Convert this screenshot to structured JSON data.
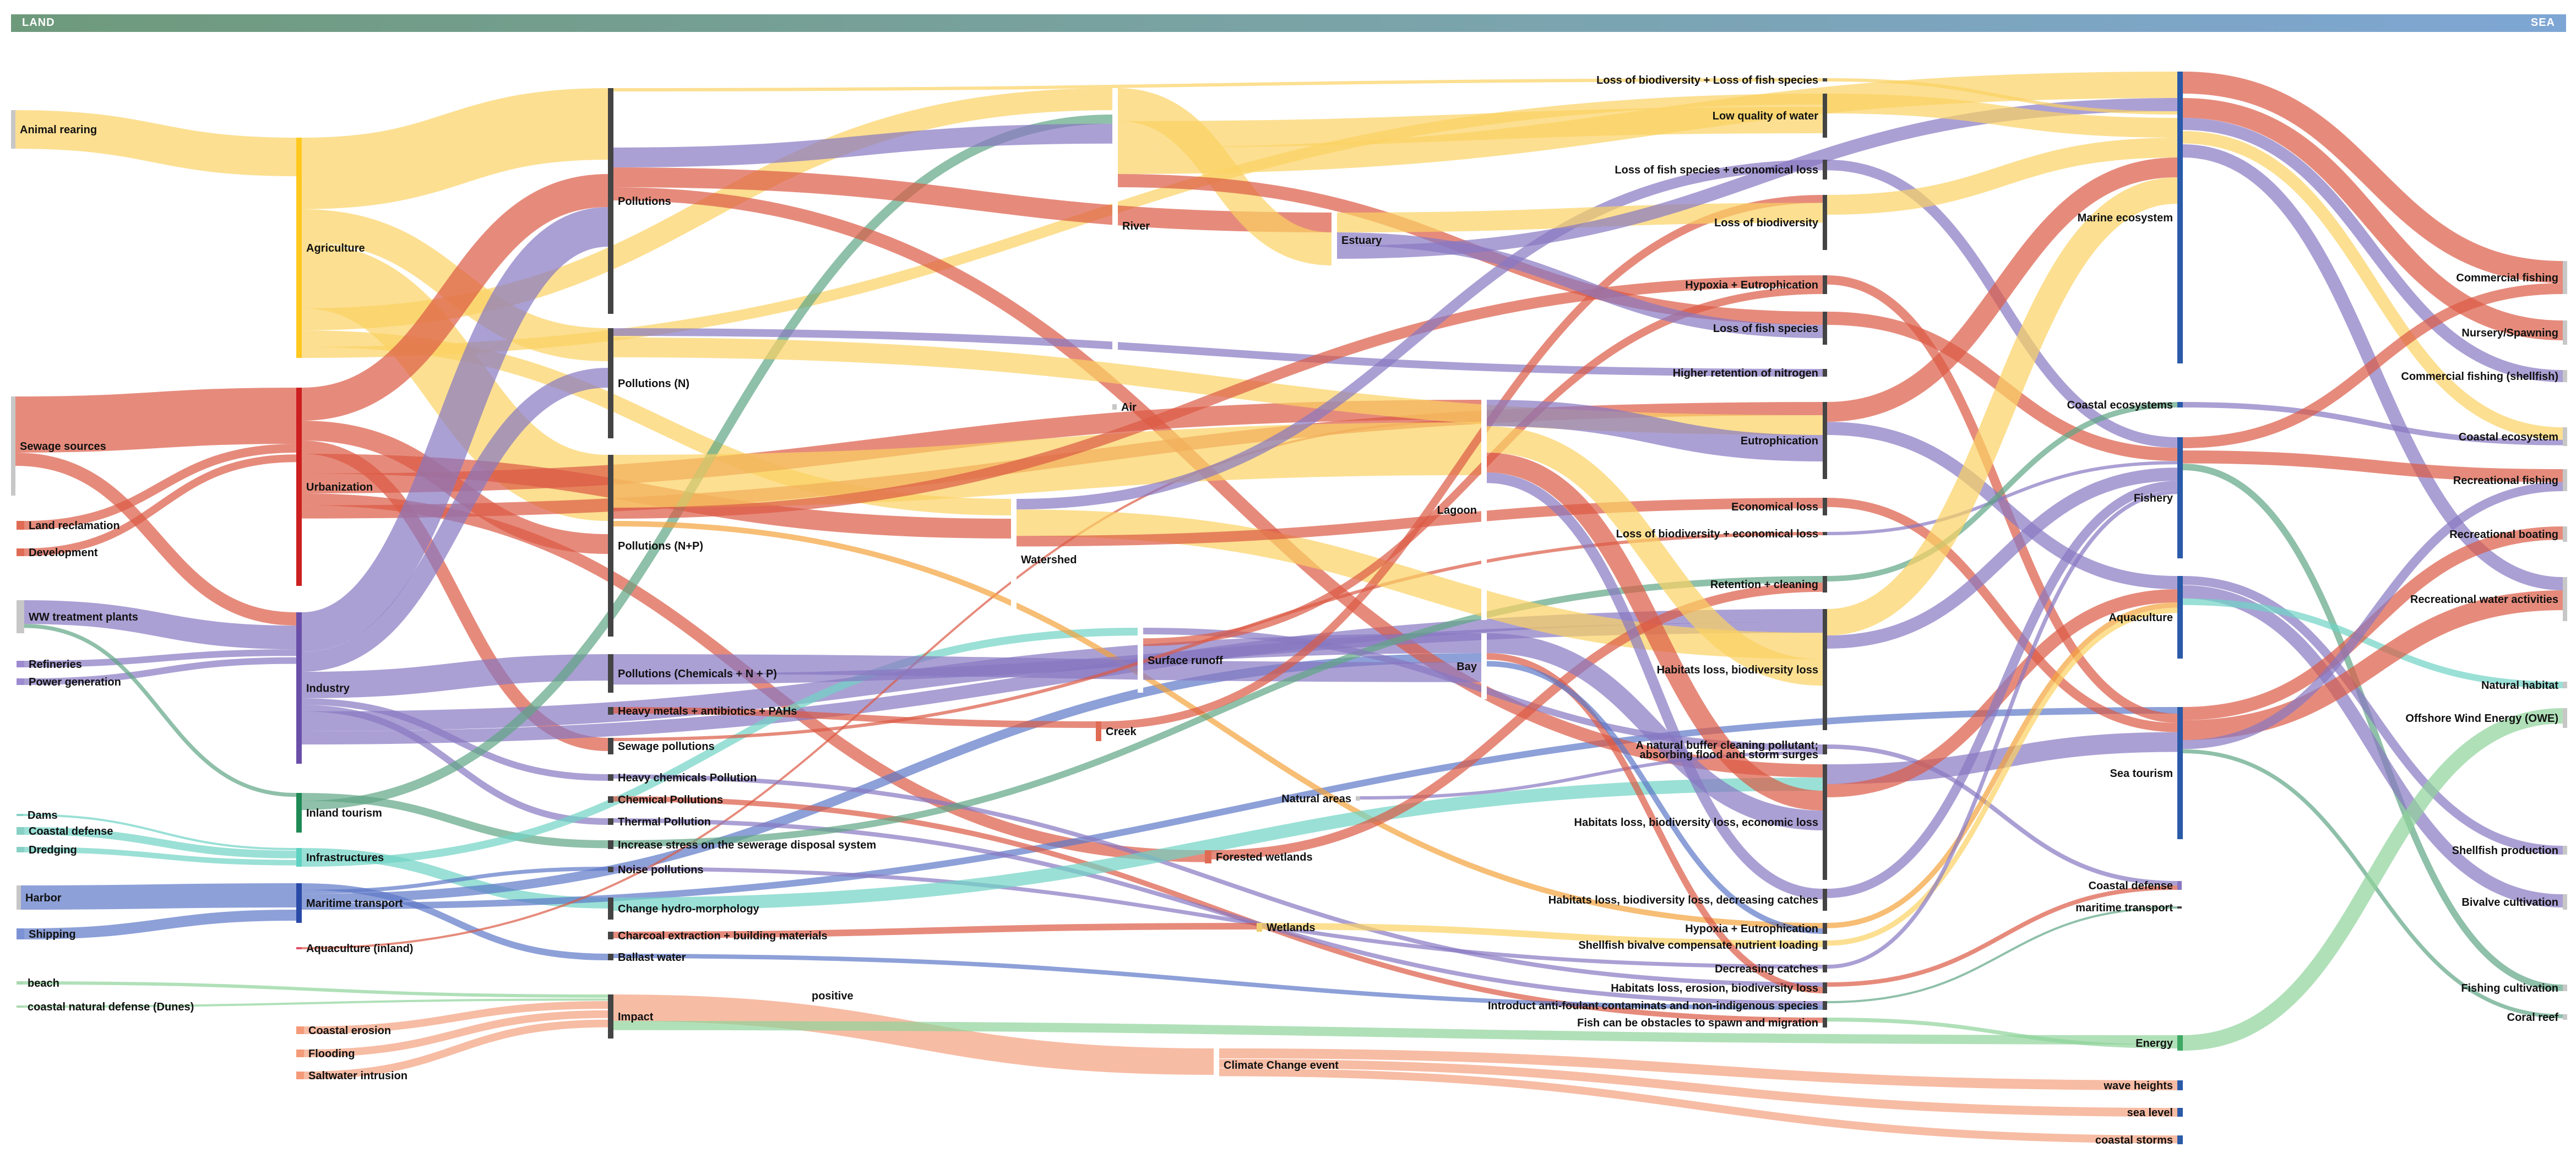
{
  "header": {
    "left_label": "LAND",
    "right_label": "SEA"
  },
  "colors": {
    "yellow": "#fbd262",
    "red": "#dc5a44",
    "purple": "#8777c2",
    "green": "#5fa584",
    "teal": "#6fd3c4",
    "blue": "#5d78c8",
    "lightgreen": "#8fd39a",
    "salmon": "#f4a07e",
    "orange": "#f3a23c",
    "node_dark": "#4a4a4a"
  },
  "nodes": [
    {
      "id": "animal",
      "label": "Animal rearing"
    },
    {
      "id": "sewsrc",
      "label": "Sewage sources"
    },
    {
      "id": "landrec",
      "label": "Land reclamation"
    },
    {
      "id": "develop",
      "label": "Development"
    },
    {
      "id": "wwtp",
      "label": "WW treatment plants"
    },
    {
      "id": "refin",
      "label": "Refineries"
    },
    {
      "id": "power",
      "label": "Power generation"
    },
    {
      "id": "dams",
      "label": "Dams"
    },
    {
      "id": "coastdef0",
      "label": "Coastal defense"
    },
    {
      "id": "dredg",
      "label": "Dredging"
    },
    {
      "id": "harbor",
      "label": "Harbor"
    },
    {
      "id": "shipping",
      "label": "Shipping"
    },
    {
      "id": "beach",
      "label": "beach"
    },
    {
      "id": "dunes",
      "label": "coastal natural defense (Dunes)"
    },
    {
      "id": "agri",
      "label": "Agriculture"
    },
    {
      "id": "urban",
      "label": "Urbanization"
    },
    {
      "id": "industry",
      "label": "Industry"
    },
    {
      "id": "inltour",
      "label": "Inland tourism"
    },
    {
      "id": "infra",
      "label": "Infrastructures"
    },
    {
      "id": "marit",
      "label": "Maritime transport"
    },
    {
      "id": "aquainl",
      "label": "Aquaculture (inland)"
    },
    {
      "id": "erosion",
      "label": "Coastal erosion"
    },
    {
      "id": "flood",
      "label": "Flooding"
    },
    {
      "id": "saltw",
      "label": "Saltwater intrusion"
    },
    {
      "id": "poll",
      "label": "Pollutions"
    },
    {
      "id": "pollN",
      "label": "Pollutions (N)"
    },
    {
      "id": "pollNP",
      "label": "Pollutions (N+P)"
    },
    {
      "id": "pollChem",
      "label": "Pollutions (Chemicals + N + P)"
    },
    {
      "id": "heavy",
      "label": "Heavy metals + antibiotics + PAHs"
    },
    {
      "id": "sewpoll",
      "label": "Sewage pollutions"
    },
    {
      "id": "hchem",
      "label": "Heavy chemicals Pollution"
    },
    {
      "id": "chemp",
      "label": "Chemical Pollutions"
    },
    {
      "id": "thermal",
      "label": "Thermal Pollution"
    },
    {
      "id": "stress",
      "label": "Increase stress on the sewerage disposal system"
    },
    {
      "id": "noise",
      "label": "Noise pollutions"
    },
    {
      "id": "hydro",
      "label": "Change hydro-morphology"
    },
    {
      "id": "charcoal",
      "label": "Charcoal extraction + building materials"
    },
    {
      "id": "ballast",
      "label": "Ballast water"
    },
    {
      "id": "impact",
      "label": "Impact"
    },
    {
      "id": "river",
      "label": "River"
    },
    {
      "id": "air",
      "label": "Air"
    },
    {
      "id": "watershed",
      "label": "Watershed"
    },
    {
      "id": "surfrun",
      "label": "Surface runoff"
    },
    {
      "id": "creek",
      "label": "Creek"
    },
    {
      "id": "estuary",
      "label": "Estuary"
    },
    {
      "id": "natural",
      "label": "Natural areas"
    },
    {
      "id": "forested",
      "label": "Forested wetlands"
    },
    {
      "id": "wetlands",
      "label": "Wetlands"
    },
    {
      "id": "climate",
      "label": "Climate Change event"
    },
    {
      "id": "lagoon",
      "label": "Lagoon"
    },
    {
      "id": "bay",
      "label": "Bay"
    },
    {
      "id": "e1",
      "label": "Loss of biodiversity + Loss of fish species"
    },
    {
      "id": "e2",
      "label": "Low quality of water"
    },
    {
      "id": "e3",
      "label": "Loss of fish species + economical loss"
    },
    {
      "id": "e4",
      "label": "Loss of biodiversity"
    },
    {
      "id": "e5",
      "label": "Hypoxia + Eutrophication"
    },
    {
      "id": "e6",
      "label": "Loss of fish species"
    },
    {
      "id": "e7",
      "label": "Higher retention of nitrogen"
    },
    {
      "id": "e8",
      "label": "Eutrophication"
    },
    {
      "id": "e9",
      "label": "Economical loss"
    },
    {
      "id": "e10",
      "label": "Loss of biodiversity + economical loss"
    },
    {
      "id": "e11",
      "label": "Retention + cleaning"
    },
    {
      "id": "e12",
      "label": "Habitats loss, biodiversity loss"
    },
    {
      "id": "e13",
      "label": "A natural buffer cleaning pollutant;"
    },
    {
      "id": "e13b",
      "label": "absorbing flood and storm surges"
    },
    {
      "id": "e14",
      "label": "Habitats loss, biodiversity loss, economic loss"
    },
    {
      "id": "e15",
      "label": "Habitats loss, biodiversity loss, decreasing catches"
    },
    {
      "id": "e16",
      "label": "Hypoxia + Eutrophication"
    },
    {
      "id": "e17",
      "label": "Shellfish bivalve compensate nutrient loading"
    },
    {
      "id": "e18",
      "label": "Decreasing catches"
    },
    {
      "id": "e19",
      "label": "Habitats loss, erosion, biodiversity loss"
    },
    {
      "id": "e20",
      "label": "Introduct anti-foulant contaminats and non-indigenous species"
    },
    {
      "id": "e21",
      "label": "Fish can be obstacles to spawn and migration"
    },
    {
      "id": "marineeco",
      "label": "Marine ecosystem"
    },
    {
      "id": "coasteco",
      "label": "Coastal ecosystems"
    },
    {
      "id": "fishery",
      "label": "Fishery"
    },
    {
      "id": "aquac",
      "label": "Aquaculture"
    },
    {
      "id": "seatour",
      "label": "Sea tourism"
    },
    {
      "id": "coastdef",
      "label": "Coastal defense"
    },
    {
      "id": "maritr",
      "label": "maritime transport"
    },
    {
      "id": "energy",
      "label": "Energy"
    },
    {
      "id": "wave",
      "label": "wave heights"
    },
    {
      "id": "sealevel",
      "label": "sea level"
    },
    {
      "id": "storms",
      "label": "coastal storms"
    },
    {
      "id": "positive",
      "label": "positive"
    },
    {
      "id": "commfish",
      "label": "Commercial fishing"
    },
    {
      "id": "nursery",
      "label": "Nursery/Spawning"
    },
    {
      "id": "commshell",
      "label": "Commercial fishing (shellfish)"
    },
    {
      "id": "coastecoR",
      "label": "Coastal ecosystem"
    },
    {
      "id": "recfish",
      "label": "Recreational fishing"
    },
    {
      "id": "recboat",
      "label": "Recreational boating"
    },
    {
      "id": "recwater",
      "label": "Recreational water activities"
    },
    {
      "id": "nathab",
      "label": "Natural habitat"
    },
    {
      "id": "owe",
      "label": "Offshore Wind Energy (OWE)"
    },
    {
      "id": "shellprod",
      "label": "Shellfish production"
    },
    {
      "id": "bivalve",
      "label": "Bivalve cultivation"
    },
    {
      "id": "fishcult",
      "label": "Fishing cultivation"
    },
    {
      "id": "coral",
      "label": "Coral reef"
    }
  ],
  "links": [
    {
      "s": "animal",
      "t": "agri",
      "c": "yellow",
      "w": 70
    },
    {
      "s": "sewsrc",
      "t": "urban",
      "c": "red",
      "w": 85
    },
    {
      "s": "sewsrc",
      "t": "industry",
      "c": "red",
      "w": 20
    },
    {
      "s": "landrec",
      "t": "urban",
      "c": "red",
      "w": 16
    },
    {
      "s": "develop",
      "t": "urban",
      "c": "red",
      "w": 14
    },
    {
      "s": "wwtp",
      "t": "industry",
      "c": "purple",
      "w": 36
    },
    {
      "s": "refin",
      "t": "industry",
      "c": "purple",
      "w": 12
    },
    {
      "s": "power",
      "t": "industry",
      "c": "purple",
      "w": 12
    },
    {
      "s": "wwtp",
      "t": "inltour",
      "c": "green",
      "w": 6
    },
    {
      "s": "dams",
      "t": "infra",
      "c": "teal",
      "w": 4
    },
    {
      "s": "coastdef0",
      "t": "infra",
      "c": "teal",
      "w": 14
    },
    {
      "s": "dredg",
      "t": "infra",
      "c": "teal",
      "w": 10
    },
    {
      "s": "harbor",
      "t": "marit",
      "c": "blue",
      "w": 40
    },
    {
      "s": "shipping",
      "t": "marit",
      "c": "blue",
      "w": 20
    },
    {
      "s": "beach",
      "t": "impact",
      "c": "lightgreen",
      "w": 6
    },
    {
      "s": "dunes",
      "t": "impact",
      "c": "lightgreen",
      "w": 4
    },
    {
      "s": "agri",
      "t": "poll",
      "c": "yellow",
      "w": 130
    },
    {
      "s": "agri",
      "t": "pollN",
      "c": "yellow",
      "w": 60
    },
    {
      "s": "agri",
      "t": "pollNP",
      "c": "yellow",
      "w": 120
    },
    {
      "s": "agri",
      "t": "river",
      "c": "yellow",
      "w": 40
    },
    {
      "s": "agri",
      "t": "watershed",
      "c": "yellow",
      "w": 30
    },
    {
      "s": "agri",
      "t": "e2",
      "c": "yellow",
      "w": 20
    },
    {
      "s": "urban",
      "t": "poll",
      "c": "red",
      "w": 50
    },
    {
      "s": "urban",
      "t": "pollNP",
      "c": "red",
      "w": 30
    },
    {
      "s": "urban",
      "t": "sewpoll",
      "c": "red",
      "w": 20
    },
    {
      "s": "urban",
      "t": "watershed",
      "c": "red",
      "w": 30
    },
    {
      "s": "urban",
      "t": "lagoon",
      "c": "red",
      "w": 30
    },
    {
      "s": "urban",
      "t": "forested",
      "c": "red",
      "w": 18
    },
    {
      "s": "urban",
      "t": "e8",
      "c": "red",
      "w": 20
    },
    {
      "s": "industry",
      "t": "poll",
      "c": "purple",
      "w": 60
    },
    {
      "s": "industry",
      "t": "pollN",
      "c": "purple",
      "w": 30
    },
    {
      "s": "industry",
      "t": "pollChem",
      "c": "purple",
      "w": 40
    },
    {
      "s": "industry",
      "t": "hchem",
      "c": "purple",
      "w": 10
    },
    {
      "s": "industry",
      "t": "thermal",
      "c": "purple",
      "w": 10
    },
    {
      "s": "industry",
      "t": "bay",
      "c": "purple",
      "w": 30
    },
    {
      "s": "industry",
      "t": "e12",
      "c": "purple",
      "w": 20
    },
    {
      "s": "inltour",
      "t": "stress",
      "c": "green",
      "w": 12
    },
    {
      "s": "inltour",
      "t": "river",
      "c": "green",
      "w": 14
    },
    {
      "s": "infra",
      "t": "hydro",
      "c": "teal",
      "w": 28
    },
    {
      "s": "infra",
      "t": "surfrun",
      "c": "teal",
      "w": 20
    },
    {
      "s": "marit",
      "t": "ballast",
      "c": "blue",
      "w": 10
    },
    {
      "s": "marit",
      "t": "noise",
      "c": "blue",
      "w": 6
    },
    {
      "s": "marit",
      "t": "bay",
      "c": "blue",
      "w": 14
    },
    {
      "s": "marit",
      "t": "seatour",
      "c": "blue",
      "w": 10
    },
    {
      "s": "aquainl",
      "t": "lagoon",
      "c": "red",
      "w": 4
    },
    {
      "s": "erosion",
      "t": "impact",
      "c": "salmon",
      "w": 14
    },
    {
      "s": "flood",
      "t": "impact",
      "c": "salmon",
      "w": 14
    },
    {
      "s": "saltw",
      "t": "impact",
      "c": "salmon",
      "w": 14
    },
    {
      "s": "impact",
      "t": "climate",
      "c": "salmon",
      "w": 40
    },
    {
      "s": "impact",
      "t": "energy",
      "c": "lightgreen",
      "w": 14
    },
    {
      "s": "poll",
      "t": "e1",
      "c": "yellow",
      "w": 90
    },
    {
      "s": "poll",
      "t": "river",
      "c": "purple",
      "w": 30
    },
    {
      "s": "poll",
      "t": "estuary",
      "c": "red",
      "w": 30
    },
    {
      "s": "poll",
      "t": "e14",
      "c": "red",
      "w": 20
    },
    {
      "s": "pollN",
      "t": "e7",
      "c": "purple",
      "w": 14
    },
    {
      "s": "pollN",
      "t": "e8",
      "c": "yellow",
      "w": 30
    },
    {
      "s": "pollNP",
      "t": "lagoon",
      "c": "yellow",
      "w": 80
    },
    {
      "s": "pollNP",
      "t": "e5",
      "c": "red",
      "w": 20
    },
    {
      "s": "pollNP",
      "t": "e16",
      "c": "orange",
      "w": 10
    },
    {
      "s": "pollChem",
      "t": "bay",
      "c": "purple",
      "w": 30
    },
    {
      "s": "pollChem",
      "t": "e12",
      "c": "purple",
      "w": 16
    },
    {
      "s": "heavy",
      "t": "creek",
      "c": "red",
      "w": 10
    },
    {
      "s": "sewpoll",
      "t": "e10",
      "c": "red",
      "w": 16
    },
    {
      "s": "hchem",
      "t": "e19",
      "c": "purple",
      "w": 8
    },
    {
      "s": "chemp",
      "t": "e21",
      "c": "red",
      "w": 8
    },
    {
      "s": "thermal",
      "t": "e20",
      "c": "purple",
      "w": 8
    },
    {
      "s": "stress",
      "t": "e11",
      "c": "green",
      "w": 10
    },
    {
      "s": "noise",
      "t": "e18",
      "c": "purple",
      "w": 6
    },
    {
      "s": "hydro",
      "t": "e14",
      "c": "teal",
      "w": 20
    },
    {
      "s": "charcoal",
      "t": "wetlands",
      "c": "red",
      "w": 10
    },
    {
      "s": "ballast",
      "t": "e20",
      "c": "blue",
      "w": 8
    },
    {
      "s": "river",
      "t": "estuary",
      "c": "yellow",
      "w": 50
    },
    {
      "s": "river",
      "t": "e2",
      "c": "yellow",
      "w": 40
    },
    {
      "s": "river",
      "t": "marineeco",
      "c": "yellow",
      "w": 40
    },
    {
      "s": "river",
      "t": "e6",
      "c": "red",
      "w": 20
    },
    {
      "s": "watershed",
      "t": "e3",
      "c": "purple",
      "w": 16
    },
    {
      "s": "watershed",
      "t": "e12",
      "c": "yellow",
      "w": 40
    },
    {
      "s": "watershed",
      "t": "e9",
      "c": "red",
      "w": 16
    },
    {
      "s": "surfrun",
      "t": "e13",
      "c": "purple",
      "w": 16
    },
    {
      "s": "surfrun",
      "t": "e5",
      "c": "red",
      "w": 14
    },
    {
      "s": "creek",
      "t": "e4",
      "c": "red",
      "w": 12
    },
    {
      "s": "estuary",
      "t": "e4",
      "c": "yellow",
      "w": 30
    },
    {
      "s": "estuary",
      "t": "e6",
      "c": "purple",
      "w": 20
    },
    {
      "s": "estuary",
      "t": "marineeco",
      "c": "purple",
      "w": 20
    },
    {
      "s": "natural",
      "t": "e13",
      "c": "purple",
      "w": 8
    },
    {
      "s": "forested",
      "t": "e11",
      "c": "red",
      "w": 14
    },
    {
      "s": "wetlands",
      "t": "e17",
      "c": "yellow",
      "w": 10
    },
    {
      "s": "climate",
      "t": "wave",
      "c": "salmon",
      "w": 16
    },
    {
      "s": "climate",
      "t": "sealevel",
      "c": "salmon",
      "w": 14
    },
    {
      "s": "climate",
      "t": "storms",
      "c": "salmon",
      "w": 12
    },
    {
      "s": "lagoon",
      "t": "e8",
      "c": "purple",
      "w": 40
    },
    {
      "s": "lagoon",
      "t": "e12",
      "c": "yellow",
      "w": 40
    },
    {
      "s": "lagoon",
      "t": "e14",
      "c": "red",
      "w": 30
    },
    {
      "s": "lagoon",
      "t": "e15",
      "c": "purple",
      "w": 16
    },
    {
      "s": "bay",
      "t": "e14",
      "c": "purple",
      "w": 30
    },
    {
      "s": "bay",
      "t": "e19",
      "c": "red",
      "w": 12
    },
    {
      "s": "bay",
      "t": "e16",
      "c": "blue",
      "w": 10
    },
    {
      "s": "e1",
      "t": "marineeco",
      "c": "yellow",
      "w": 10
    },
    {
      "s": "e2",
      "t": "marineeco",
      "c": "yellow",
      "w": 30
    },
    {
      "s": "e3",
      "t": "fishery",
      "c": "purple",
      "w": 16
    },
    {
      "s": "e4",
      "t": "marineeco",
      "c": "yellow",
      "w": 30
    },
    {
      "s": "e5",
      "t": "seatour",
      "c": "red",
      "w": 14
    },
    {
      "s": "e6",
      "t": "fishery",
      "c": "red",
      "w": 20
    },
    {
      "s": "e8",
      "t": "marineeco",
      "c": "red",
      "w": 30
    },
    {
      "s": "e8",
      "t": "aquac",
      "c": "purple",
      "w": 20
    },
    {
      "s": "e9",
      "t": "seatour",
      "c": "red",
      "w": 14
    },
    {
      "s": "e10",
      "t": "fishery",
      "c": "purple",
      "w": 10
    },
    {
      "s": "e11",
      "t": "coasteco",
      "c": "green",
      "w": 10
    },
    {
      "s": "e12",
      "t": "marineeco",
      "c": "yellow",
      "w": 40
    },
    {
      "s": "e12",
      "t": "fishery",
      "c": "purple",
      "w": 20
    },
    {
      "s": "e13",
      "t": "coastdef",
      "c": "purple",
      "w": 8
    },
    {
      "s": "e14",
      "t": "seatour",
      "c": "purple",
      "w": 30
    },
    {
      "s": "e14",
      "t": "aquac",
      "c": "red",
      "w": 20
    },
    {
      "s": "e15",
      "t": "fishery",
      "c": "purple",
      "w": 14
    },
    {
      "s": "e16",
      "t": "aquac",
      "c": "orange",
      "w": 8
    },
    {
      "s": "e17",
      "t": "aquac",
      "c": "yellow",
      "w": 8
    },
    {
      "s": "e18",
      "t": "fishery",
      "c": "purple",
      "w": 6
    },
    {
      "s": "e19",
      "t": "coastdef",
      "c": "red",
      "w": 8
    },
    {
      "s": "e20",
      "t": "maritr",
      "c": "green",
      "w": 6
    },
    {
      "s": "e21",
      "t": "energy",
      "c": "lightgreen",
      "w": 6
    },
    {
      "s": "marineeco",
      "t": "commfish",
      "c": "red",
      "w": 40
    },
    {
      "s": "marineeco",
      "t": "nursery",
      "c": "red",
      "w": 30
    },
    {
      "s": "marineeco",
      "t": "commshell",
      "c": "purple",
      "w": 20
    },
    {
      "s": "marineeco",
      "t": "coastecoR",
      "c": "yellow",
      "w": 20
    },
    {
      "s": "marineeco",
      "t": "recwater",
      "c": "purple",
      "w": 20
    },
    {
      "s": "coasteco",
      "t": "coastecoR",
      "c": "purple",
      "w": 10
    },
    {
      "s": "fishery",
      "t": "commfish",
      "c": "red",
      "w": 20
    },
    {
      "s": "fishery",
      "t": "recfish",
      "c": "red",
      "w": 20
    },
    {
      "s": "fishery",
      "t": "fishcult",
      "c": "green",
      "w": 10
    },
    {
      "s": "aquac",
      "t": "shellprod",
      "c": "purple",
      "w": 14
    },
    {
      "s": "aquac",
      "t": "bivalve",
      "c": "purple",
      "w": 20
    },
    {
      "s": "aquac",
      "t": "nathab",
      "c": "teal",
      "w": 10
    },
    {
      "s": "seatour",
      "t": "recboat",
      "c": "red",
      "w": 20
    },
    {
      "s": "seatour",
      "t": "recwater",
      "c": "red",
      "w": 30
    },
    {
      "s": "seatour",
      "t": "recfish",
      "c": "purple",
      "w": 14
    },
    {
      "s": "seatour",
      "t": "coral",
      "c": "green",
      "w": 6
    },
    {
      "s": "energy",
      "t": "owe",
      "c": "lightgreen",
      "w": 30
    }
  ]
}
